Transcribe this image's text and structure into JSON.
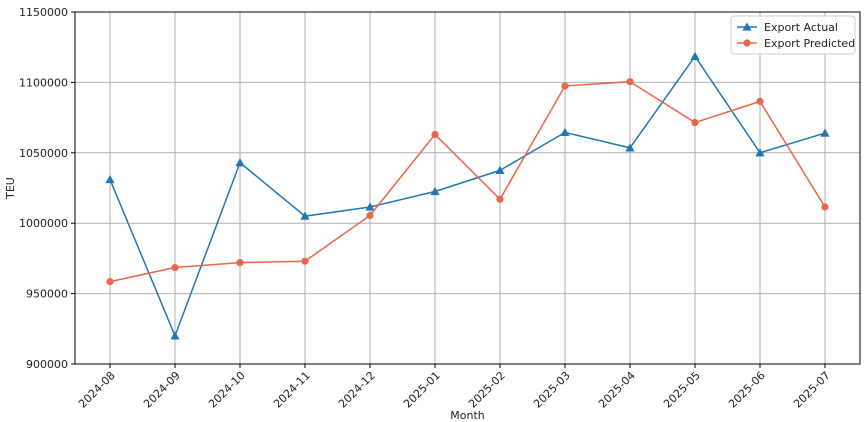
{
  "chart_data": {
    "type": "line",
    "xlabel": "Month",
    "ylabel": "TEU",
    "categories": [
      "2024-08",
      "2024-09",
      "2024-10",
      "2024-11",
      "2024-12",
      "2025-01",
      "2025-02",
      "2025-03",
      "2025-04",
      "2025-05",
      "2025-06",
      "2025-07"
    ],
    "ylim": [
      900000,
      1150000
    ],
    "yticks": [
      900000,
      950000,
      1000000,
      1050000,
      1100000,
      1150000
    ],
    "grid": true,
    "legend_position": "top-right",
    "series": [
      {
        "name": "Export Actual",
        "color": "#1f77b4",
        "marker": "triangle",
        "values": [
          1031000,
          920000,
          1043000,
          1005000,
          1011500,
          1022500,
          1037500,
          1064500,
          1053500,
          1118500,
          1050000,
          1064000
        ]
      },
      {
        "name": "Export Predicted",
        "color": "#e8664a",
        "marker": "circle",
        "values": [
          958500,
          968500,
          972000,
          973000,
          1005500,
          1063000,
          1017000,
          1097500,
          1100500,
          1071500,
          1086500,
          1011500
        ]
      }
    ]
  }
}
